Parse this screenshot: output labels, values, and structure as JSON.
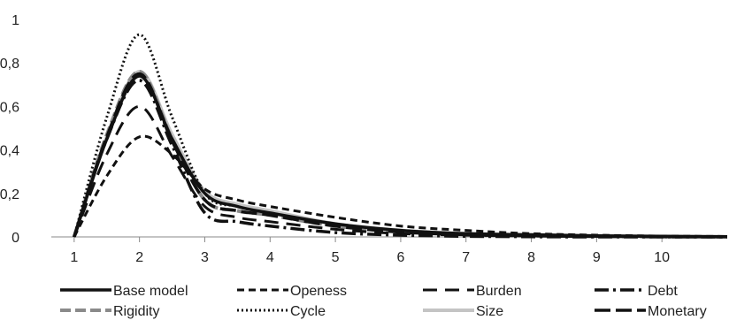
{
  "chart_data": {
    "type": "line",
    "x": [
      1,
      1.5,
      2,
      2.5,
      3,
      3.5,
      4,
      5,
      6,
      7,
      8,
      9,
      10,
      11
    ],
    "xticks": [
      "1",
      "2",
      "3",
      "4",
      "5",
      "6",
      "7",
      "8",
      "9",
      "10"
    ],
    "yticks": [
      "0",
      "0,2",
      "0,4",
      "0,6",
      "0,8",
      "1"
    ],
    "xlim": [
      0.65,
      11.0
    ],
    "ylim": [
      0,
      1
    ],
    "legend_position": "bottom",
    "series": [
      {
        "name": "Base model",
        "color": "#111111",
        "dash": "",
        "width": 3.5,
        "values": [
          0,
          0.45,
          0.74,
          0.45,
          0.2,
          0.14,
          0.11,
          0.06,
          0.03,
          0.015,
          0.01,
          0.005,
          0.003,
          0.001
        ]
      },
      {
        "name": "Openess",
        "color": "#111111",
        "dash": "8 5",
        "width": 3,
        "values": [
          0,
          0.28,
          0.46,
          0.38,
          0.22,
          0.17,
          0.14,
          0.09,
          0.05,
          0.03,
          0.015,
          0.008,
          0.004,
          0.002
        ]
      },
      {
        "name": "Burden",
        "color": "#111111",
        "dash": "16 9",
        "width": 3,
        "values": [
          0,
          0.38,
          0.6,
          0.37,
          0.14,
          0.09,
          0.07,
          0.035,
          0.015,
          0.008,
          0.004,
          0.002,
          0.001,
          0.0
        ]
      },
      {
        "name": "Debt",
        "color": "#111111",
        "dash": "16 5 3 5",
        "width": 3.5,
        "values": [
          0,
          0.45,
          0.72,
          0.42,
          0.11,
          0.07,
          0.05,
          0.02,
          0.008,
          0.003,
          0.001,
          0.0,
          0.0,
          0.0
        ]
      },
      {
        "name": "Rigidity",
        "color": "#8a8a8a",
        "dash": "12 5",
        "width": 4,
        "values": [
          0,
          0.47,
          0.76,
          0.45,
          0.17,
          0.12,
          0.1,
          0.05,
          0.025,
          0.012,
          0.006,
          0.003,
          0.001,
          0.0
        ]
      },
      {
        "name": "Cycle",
        "color": "#111111",
        "dash": "2 3",
        "width": 3,
        "values": [
          0,
          0.55,
          0.93,
          0.55,
          0.2,
          0.14,
          0.11,
          0.06,
          0.03,
          0.015,
          0.008,
          0.004,
          0.002,
          0.001
        ]
      },
      {
        "name": "Size",
        "color": "#c4c4c4",
        "dash": "",
        "width": 4,
        "values": [
          0,
          0.46,
          0.76,
          0.47,
          0.21,
          0.15,
          0.12,
          0.06,
          0.03,
          0.015,
          0.008,
          0.004,
          0.002,
          0.001
        ]
      },
      {
        "name": "Monetary",
        "color": "#111111",
        "dash": "18 6",
        "width": 3.5,
        "values": [
          0,
          0.46,
          0.75,
          0.44,
          0.17,
          0.12,
          0.1,
          0.05,
          0.022,
          0.01,
          0.005,
          0.002,
          0.001,
          0.0
        ]
      }
    ]
  }
}
